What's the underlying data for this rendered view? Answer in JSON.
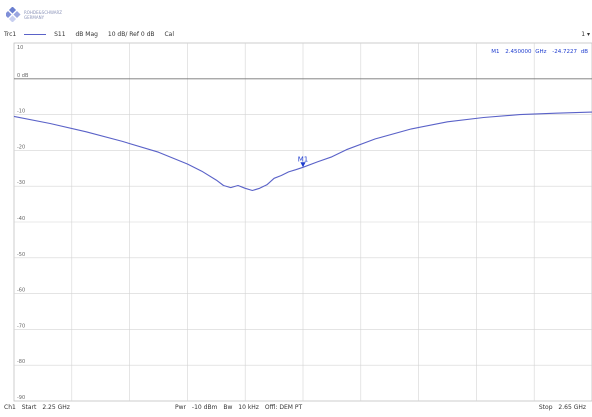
{
  "brand": {
    "line1": "ROHDE&SCHWARZ",
    "line2": "GERMANY",
    "colors": [
      "#6a7fd0",
      "#9aa6e0",
      "#c8cff0",
      "#7f8fd8"
    ]
  },
  "header": {
    "trace_name": "Trc1",
    "measurement": "S11",
    "format": "dB Mag",
    "scale": "10 dB/ Ref 0 dB",
    "cal": "Cal",
    "corner": "1 ▾"
  },
  "marker": {
    "readout_name": "M1",
    "readout_freq": "2.450000",
    "readout_freq_unit": "GHz",
    "readout_value": "-24.7227",
    "readout_value_unit": "dB",
    "label": "M1",
    "freq_ghz": 2.45,
    "value_db": -24.72
  },
  "footer": {
    "channel": "Ch1",
    "start_label": "Start",
    "start_value": "2.25 GHz",
    "power_label": "Pwr",
    "power_value": "-10 dBm",
    "bw_label": "Bw",
    "bw_value": "10 kHz",
    "offset": "Offl: DEM PT",
    "stop_label": "Stop",
    "stop_value": "2.65 GHz"
  },
  "chart_data": {
    "type": "line",
    "trace_color": "#5a62c8",
    "marker_color": "#1e3ccf",
    "grid": true,
    "xlim": [
      2.25,
      2.65
    ],
    "ylim": [
      -90,
      10
    ],
    "yticks": [
      10,
      0,
      -10,
      -20,
      -30,
      -40,
      -50,
      -60,
      -70,
      -80,
      -90
    ],
    "ytick_labels": [
      "10",
      "0 dB",
      "-10",
      "-20",
      "-30",
      "-40",
      "-50",
      "-60",
      "-70",
      "-80",
      "-90"
    ],
    "ref_level": 0,
    "series": [
      {
        "x": [
          2.25,
          2.275,
          2.3,
          2.325,
          2.35,
          2.37,
          2.38,
          2.39,
          2.395,
          2.4,
          2.405,
          2.41,
          2.415,
          2.42,
          2.425,
          2.43,
          2.435,
          2.44,
          2.445,
          2.45,
          2.46,
          2.47,
          2.48,
          2.5,
          2.525,
          2.55,
          2.575,
          2.6,
          2.625,
          2.65
        ],
        "y": [
          -10.5,
          -12.5,
          -14.8,
          -17.5,
          -20.5,
          -23.8,
          -25.8,
          -28.3,
          -29.8,
          -30.4,
          -29.8,
          -30.6,
          -31.2,
          -30.6,
          -29.6,
          -27.8,
          -27.0,
          -26.0,
          -25.4,
          -24.72,
          -23.2,
          -21.8,
          -19.8,
          -16.8,
          -14.0,
          -12.0,
          -10.8,
          -10.0,
          -9.6,
          -9.3
        ]
      }
    ]
  }
}
